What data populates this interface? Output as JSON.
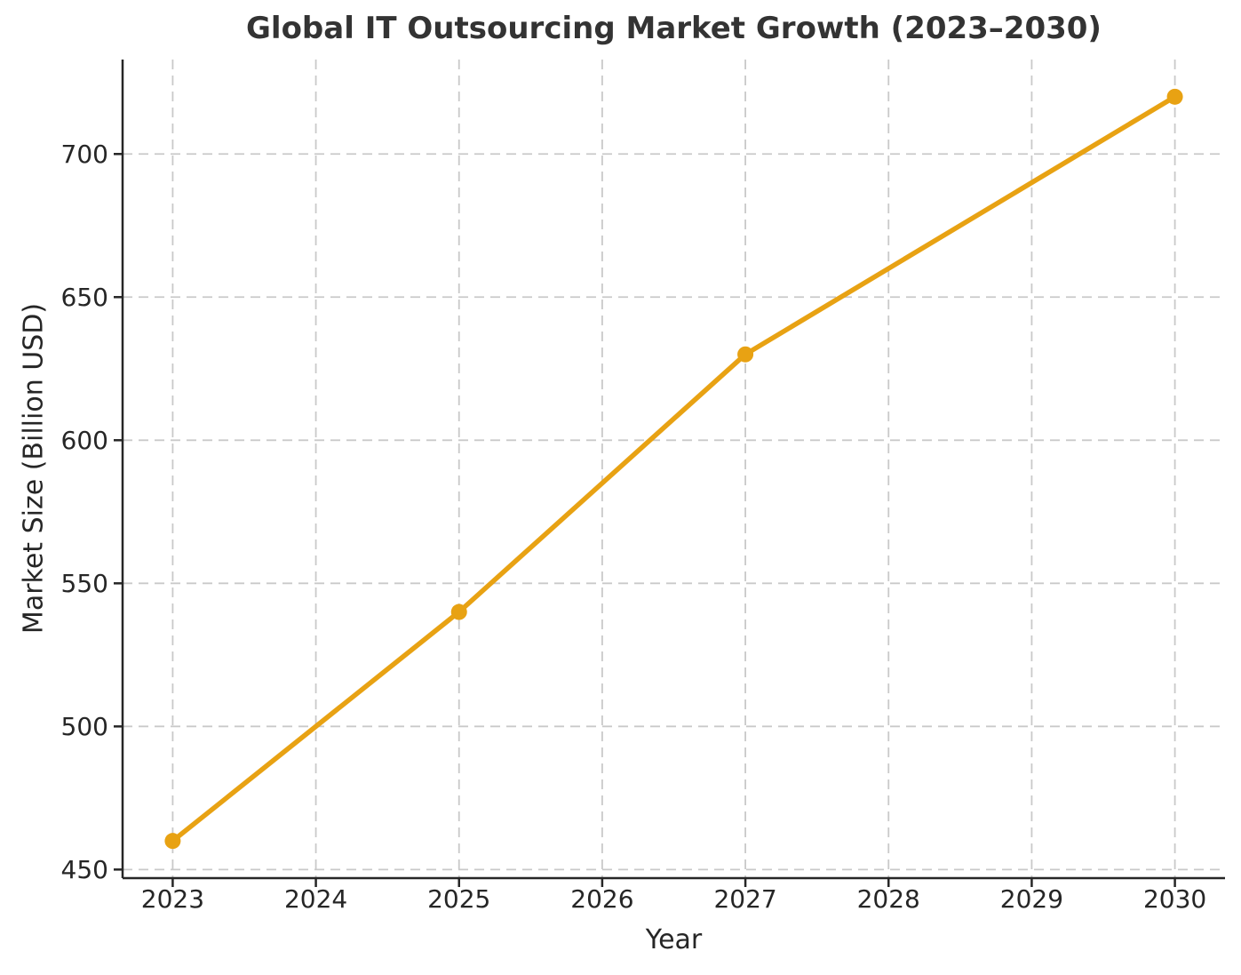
{
  "chart_data": {
    "type": "line",
    "title": "Global IT Outsourcing Market Growth (2023–2030)",
    "xlabel": "Year",
    "ylabel": "Market Size (Billion USD)",
    "series": [
      {
        "name": "Market Size (Billion USD)",
        "x": [
          2023,
          2025,
          2027,
          2030
        ],
        "values": [
          460,
          540,
          630,
          720
        ]
      }
    ],
    "x_ticks": [
      2023,
      2024,
      2025,
      2026,
      2027,
      2028,
      2029,
      2030
    ],
    "y_ticks": [
      450,
      500,
      550,
      600,
      650,
      700
    ],
    "xlim": [
      2022.65,
      2030.35
    ],
    "ylim": [
      447,
      733
    ],
    "grid": true,
    "grid_style": "dashed",
    "legend_position": "none",
    "marker": "circle",
    "colors": {
      "line": "#E8A213",
      "marker": "#E8A213",
      "grid": "#C9C9C9",
      "axis": "#262626",
      "tick_text": "#262626",
      "title_text": "#333333",
      "background": "#FFFFFF"
    }
  }
}
